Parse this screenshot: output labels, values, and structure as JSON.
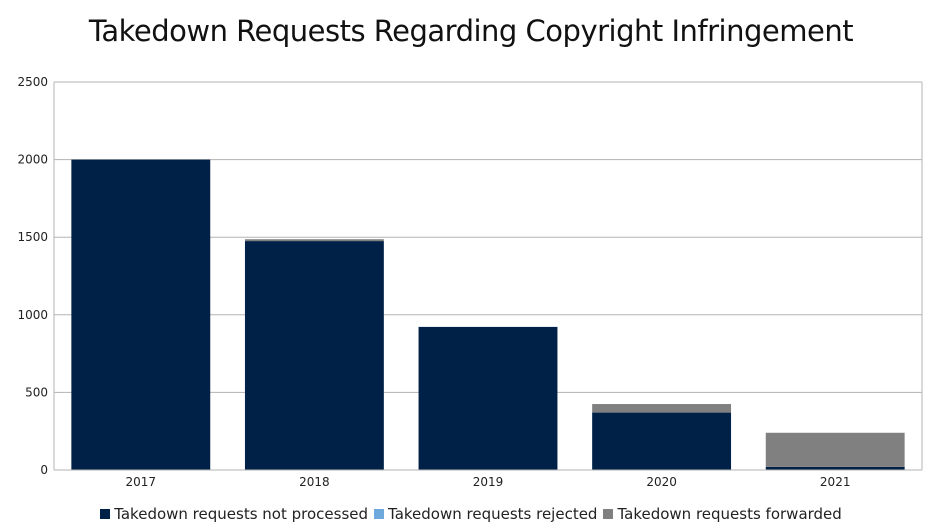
{
  "chart_data": {
    "type": "bar",
    "stacked": true,
    "title": "Takedown Requests Regarding Copyright Infringement",
    "xlabel": "",
    "ylabel": "",
    "categories": [
      "2017",
      "2018",
      "2019",
      "2020",
      "2021"
    ],
    "ylim": [
      0,
      2500
    ],
    "yticks": [
      0,
      500,
      1000,
      1500,
      2000,
      2500
    ],
    "grid": true,
    "legend_position": "bottom",
    "series": [
      {
        "name": "Takedown requests not processed",
        "color": "#002147",
        "values": [
          2000,
          1475,
          922,
          370,
          20
        ]
      },
      {
        "name": "Takedown requests rejected",
        "color": "#6fa8dc",
        "values": [
          0,
          0,
          0,
          0,
          0
        ]
      },
      {
        "name": "Takedown requests forwarded",
        "color": "#808080",
        "values": [
          0,
          12,
          0,
          55,
          220
        ]
      }
    ]
  }
}
